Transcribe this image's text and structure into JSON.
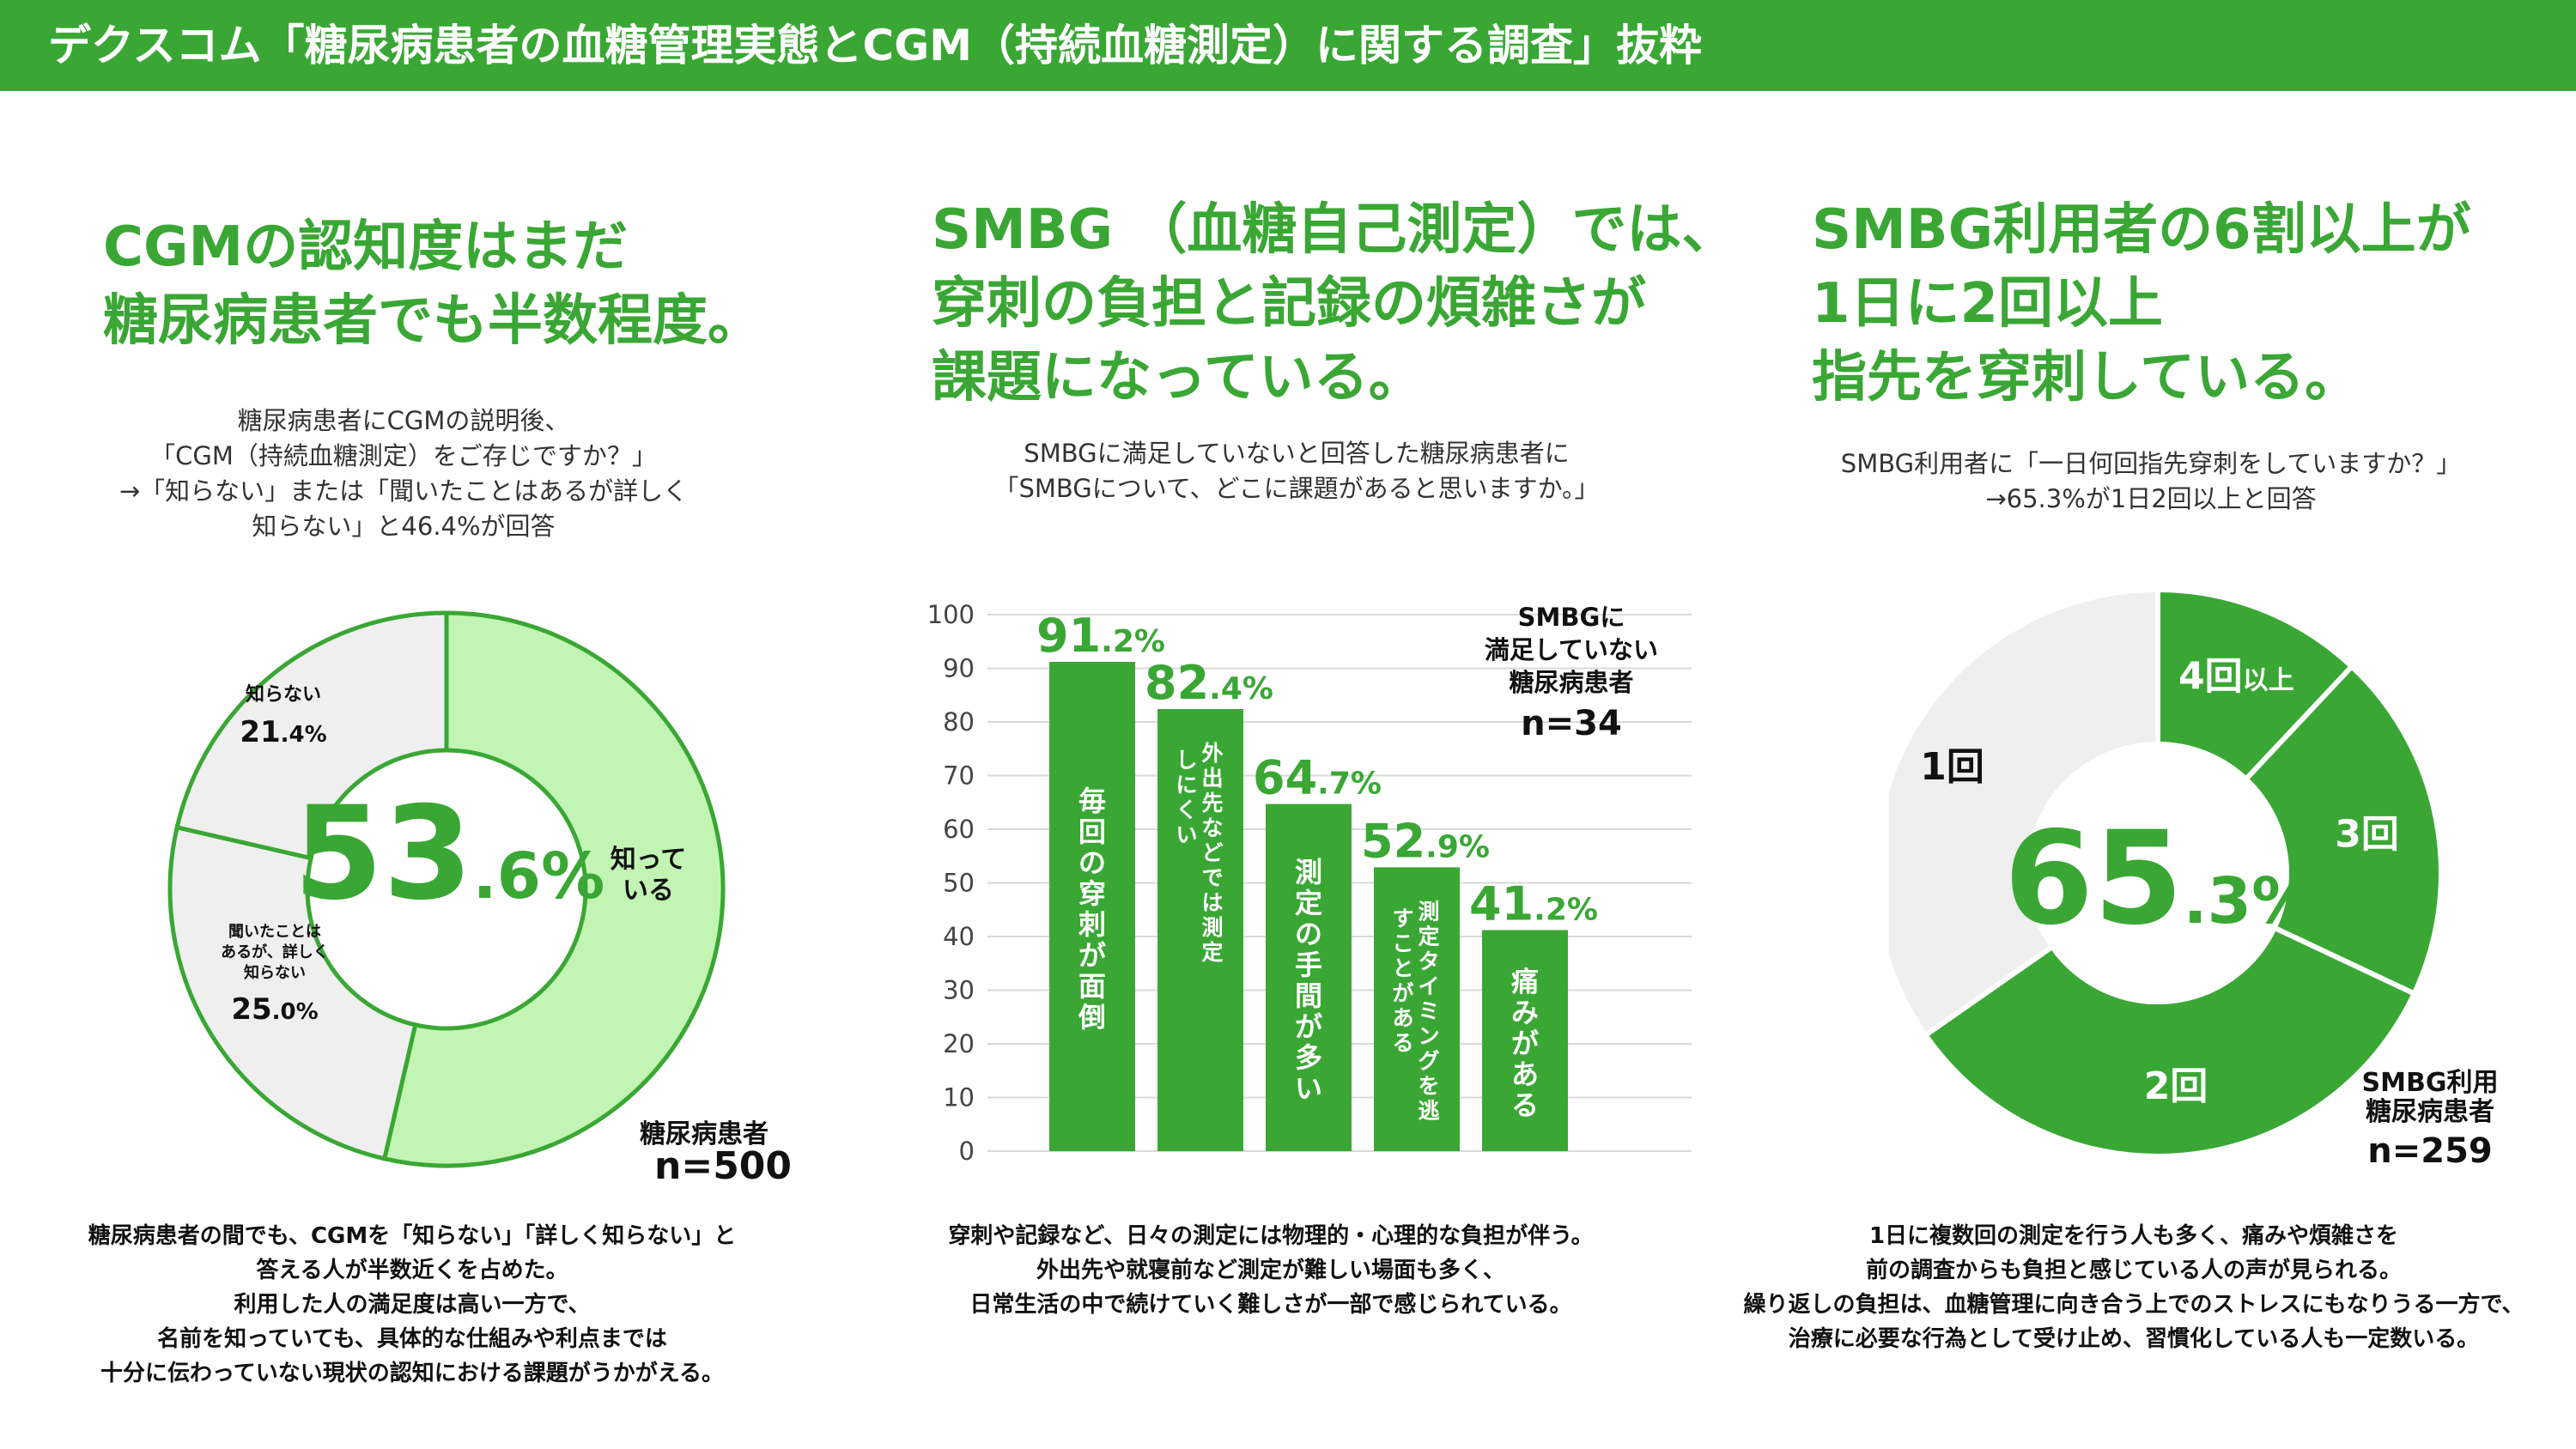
{
  "header": {
    "title": "デクスコム「糖尿病患者の血糖管理実態とCGM（持続血糖測定）に関する調査」抜粋"
  },
  "colors": {
    "brand_green": "#3aa735",
    "light_green": "#c2f5b4",
    "gray": "#efefef"
  },
  "panel1": {
    "headline": "CGMの認知度はまだ\n糖尿病患者でも半数程度。",
    "question": "糖尿病患者にCGMの説明後、\n「CGM（持続血糖測定）をご存じですか？」\n→「知らない」または「聞いたことはあるが詳しく\n知らない」と46.4%が回答",
    "summary": "糖尿病患者の間でも、CGMを「知らない」「詳しく知らない」と\n答える人が半数近くを占めた。\n利用した人の満足度は高い一方で、\n名前を知っていても、具体的な仕組みや利点までは\n十分に伝わっていない現状の認知における課題がうかがえる。",
    "center_big": "53",
    "center_small": ".6%",
    "sample_label": "糖尿病患者",
    "sample_n": "n=500"
  },
  "panel2": {
    "headline": "SMBG （血糖自己測定）では、\n穿刺の負担と記録の煩雑さが\n課題になっている。",
    "question": "SMBGに満足していないと回答した糖尿病患者に\n「SMBGについて、どこに課題があると思いますか。」",
    "summary": "穿刺や記録など、日々の測定には物理的・心理的な負担が伴う。\n外出先や就寝前など測定が難しい場面も多く、\n日常生活の中で続けていく難しさが一部で感じられている。",
    "sample_label": "SMBGに\n満足していない\n糖尿病患者",
    "sample_n": "n=34"
  },
  "panel3": {
    "headline": "SMBG利用者の6割以上が\n1日に2回以上\n指先を穿刺している。",
    "question": "SMBG利用者に「一日何回指先穿刺をしていますか？」\n→65.3%が1日2回以上と回答",
    "summary": "1日に複数回の測定を行う人も多く、痛みや煩雑さを\n前の調査からも負担と感じている人の声が見られる。\n繰り返しの負担は、血糖管理に向き合う上でのストレスにもなりうる一方で、\n治療に必要な行為として受け止め、習慣化している人も一定数いる。",
    "center_big": "65",
    "center_small": ".3%",
    "sample_label": "SMBG利用\n糖尿病患者",
    "sample_n": "n=259"
  },
  "chart_data": [
    {
      "type": "pie",
      "title": "CGMをご存じですか？",
      "donut": true,
      "slices": [
        {
          "name": "知っている",
          "label_lines": [
            "知って",
            "いる"
          ],
          "value": 53.6,
          "value_big": "",
          "value_small": "",
          "color": "#c2f5b4"
        },
        {
          "name": "聞いたことはあるが、詳しく知らない",
          "label_lines": [
            "聞いたことは",
            "あるが、詳しく",
            "知らない"
          ],
          "value": 25.0,
          "value_big": "25",
          "value_small": ".0%",
          "color": "#efefef"
        },
        {
          "name": "知らない",
          "label_lines": [
            "知らない"
          ],
          "value": 21.4,
          "value_big": "21",
          "value_small": ".4%",
          "color": "#efefef"
        }
      ]
    },
    {
      "type": "bar",
      "title": "SMBGについて、どこに課題があると思いますか。",
      "categories": [
        "毎回の穿刺が面倒",
        "外出先などでは測定しにくい",
        "測定の手間が多い",
        "測定タイミングを逃すことがある",
        "痛みがある"
      ],
      "values": [
        91.2,
        82.4,
        64.7,
        52.9,
        41.2
      ],
      "value_big": [
        "91",
        "82",
        "64",
        "52",
        "41"
      ],
      "value_small": [
        ".2%",
        ".4%",
        ".7%",
        ".9%",
        ".2%"
      ],
      "ylim": [
        0,
        100
      ],
      "yticks": [
        0,
        10,
        20,
        30,
        40,
        50,
        60,
        70,
        80,
        90,
        100
      ],
      "xlabel": "",
      "ylabel": "",
      "grid": true
    },
    {
      "type": "pie",
      "title": "一日何回指先穿刺をしていますか？",
      "donut": true,
      "slices": [
        {
          "name": "4回以上",
          "label_big": "4回",
          "label_small": "以上",
          "value": 12.0,
          "color": "#3aa735"
        },
        {
          "name": "3回",
          "label_big": "3回",
          "label_small": "",
          "value": 20.0,
          "color": "#3aa735"
        },
        {
          "name": "2回",
          "label_big": "2回",
          "label_small": "",
          "value": 33.3,
          "color": "#3aa735"
        },
        {
          "name": "1回",
          "label_big": "1回",
          "label_small": "",
          "value": 34.7,
          "color": "#efefef"
        }
      ]
    }
  ]
}
